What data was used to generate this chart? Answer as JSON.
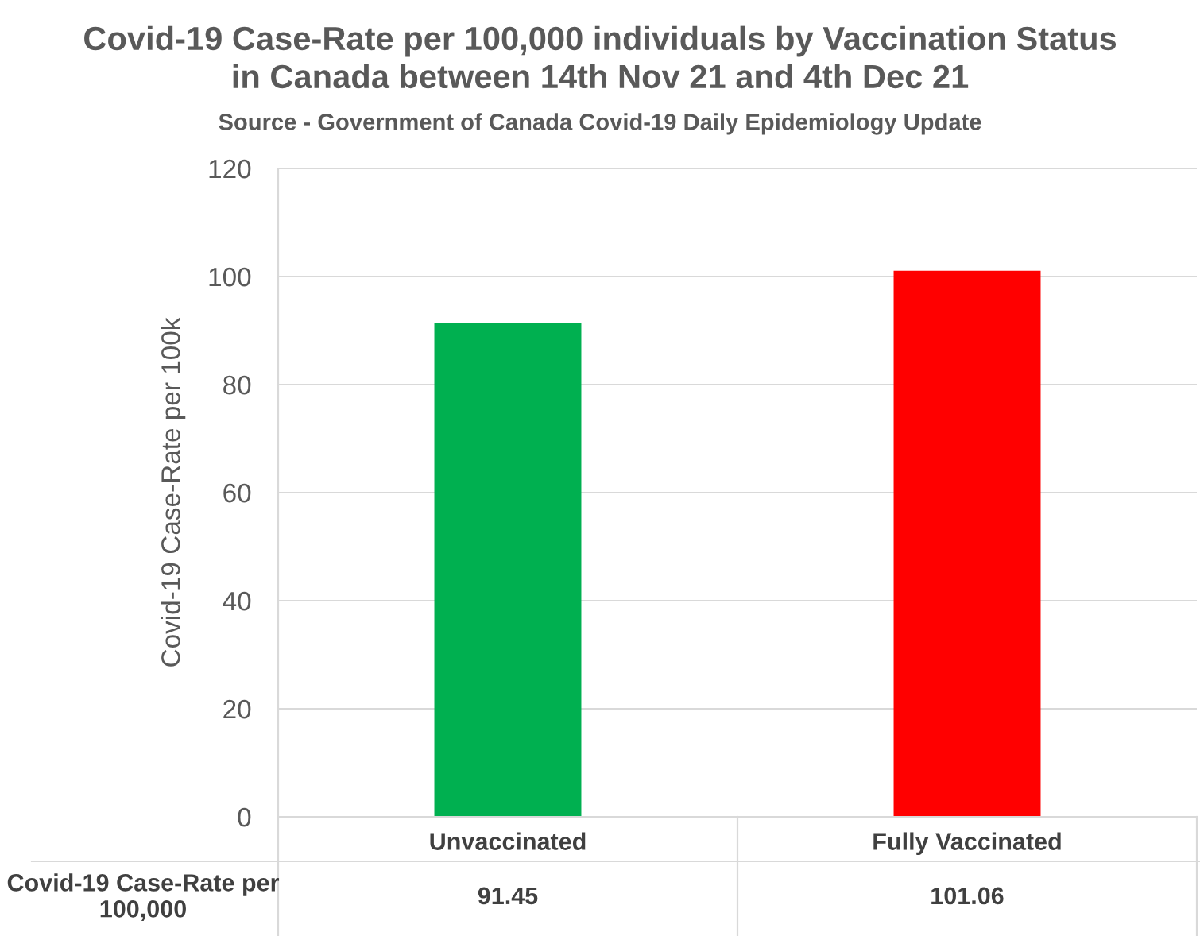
{
  "chart_data": {
    "type": "bar",
    "title": "Covid-19 Case-Rate per 100,000 individuals by Vaccination Status\nin Canada between 14th Nov 21 and 4th Dec 21",
    "subtitle": "Source - Government of Canada Covid-19 Daily Epidemiology Update",
    "ylabel": "Covid-19 Case-Rate per 100k",
    "categories": [
      "Unvaccinated",
      "Fully Vaccinated"
    ],
    "series": [
      {
        "name": "Covid-19 Case-Rate per 100,000",
        "colors": [
          "#00b050",
          "#ff0000"
        ],
        "values": [
          91.45,
          101.06
        ],
        "value_labels": [
          "91.45",
          "101.06"
        ]
      }
    ],
    "ylim": [
      0,
      120
    ],
    "yticks": [
      0,
      20,
      40,
      60,
      80,
      100,
      120
    ],
    "grid": "y",
    "legend": false
  }
}
